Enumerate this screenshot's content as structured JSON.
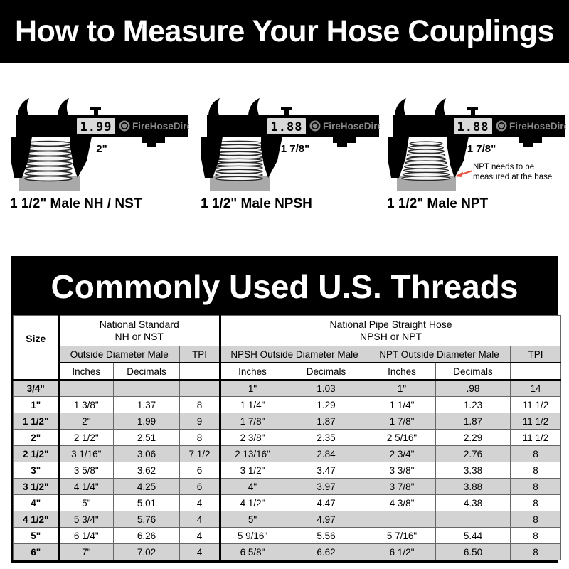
{
  "page": {
    "title": "How to Measure Your Hose Couplings"
  },
  "brand": {
    "name": "FireHoseDirect"
  },
  "calipers": [
    {
      "display_value": "1.99",
      "measured_size": "2\"",
      "caption": "1 1/2\" Male NH / NST"
    },
    {
      "display_value": "1.88",
      "measured_size": "1 7/8\"",
      "caption": "1 1/2\" Male NPSH"
    },
    {
      "display_value": "1.88",
      "measured_size": "1 7/8\"",
      "caption": "1 1/2\" Male NPT",
      "annotation": {
        "line1": "NPT needs to be",
        "line2": "measured at the base"
      }
    }
  ],
  "table": {
    "title": "Commonly Used U.S. Threads",
    "headers": {
      "size": "Size",
      "nh_group": "National Standard\nNH or NST",
      "npsh_group": "National Pipe Straight Hose\nNPSH or NPT",
      "nh_od": "Outside Diameter Male",
      "npsh_od": "NPSH Outside Diameter Male",
      "npt_od": "NPT Outside Diameter Male",
      "tpi": "TPI",
      "inches": "Inches",
      "decimals": "Decimals"
    },
    "rows": [
      [
        "3/4\"",
        "",
        "",
        "",
        "1\"",
        "1.03",
        "1\"",
        ".98",
        "14"
      ],
      [
        "1\"",
        "1 3/8\"",
        "1.37",
        "8",
        "1 1/4\"",
        "1.29",
        "1 1/4\"",
        "1.23",
        "11 1/2"
      ],
      [
        "1 1/2\"",
        "2\"",
        "1.99",
        "9",
        "1 7/8\"",
        "1.87",
        "1 7/8\"",
        "1.87",
        "11 1/2"
      ],
      [
        "2\"",
        "2 1/2\"",
        "2.51",
        "8",
        "2 3/8\"",
        "2.35",
        "2 5/16\"",
        "2.29",
        "11 1/2"
      ],
      [
        "2 1/2\"",
        "3 1/16\"",
        "3.06",
        "7 1/2",
        "2 13/16\"",
        "2.84",
        "2 3/4\"",
        "2.76",
        "8"
      ],
      [
        "3\"",
        "3 5/8\"",
        "3.62",
        "6",
        "3 1/2\"",
        "3.47",
        "3 3/8\"",
        "3.38",
        "8"
      ],
      [
        "3 1/2\"",
        "4 1/4\"",
        "4.25",
        "6",
        "4\"",
        "3.97",
        "3 7/8\"",
        "3.88",
        "8"
      ],
      [
        "4\"",
        "5\"",
        "5.01",
        "4",
        "4 1/2\"",
        "4.47",
        "4 3/8\"",
        "4.38",
        "8"
      ],
      [
        "4 1/2\"",
        "5 3/4\"",
        "5.76",
        "4",
        "5\"",
        "4.97",
        "",
        "",
        "8"
      ],
      [
        "5\"",
        "6 1/4\"",
        "6.26",
        "4",
        "5 9/16\"",
        "5.56",
        "5 7/16\"",
        "5.44",
        "8"
      ],
      [
        "6\"",
        "7\"",
        "7.02",
        "4",
        "6 5/8\"",
        "6.62",
        "6 1/2\"",
        "6.50",
        "8"
      ]
    ]
  },
  "colors": {
    "banner_bg": "#000000",
    "row_shade": "#d3d3d3",
    "base_gray": "#a9a9a9",
    "brand_gray": "#8a8a8a",
    "accent_red": "#e8523f",
    "display_bg": "#d9d9d9"
  }
}
